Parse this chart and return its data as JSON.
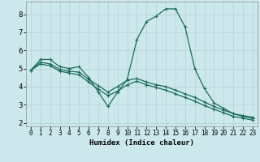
{
  "xlabel": "Humidex (Indice chaleur)",
  "bg_color": "#cce8ec",
  "line_color": "#1a6b5a",
  "grid_color": "#b8d8dc",
  "xlim": [
    -0.5,
    23.5
  ],
  "ylim": [
    1.8,
    8.7
  ],
  "xticks": [
    0,
    1,
    2,
    3,
    4,
    5,
    6,
    7,
    8,
    9,
    10,
    11,
    12,
    13,
    14,
    15,
    16,
    17,
    18,
    19,
    20,
    21,
    22,
    23
  ],
  "yticks": [
    2,
    3,
    4,
    5,
    6,
    7,
    8
  ],
  "curve1_x": [
    0,
    1,
    2,
    3,
    4,
    5,
    6,
    7,
    8,
    9,
    10,
    11,
    12,
    13,
    14,
    15,
    16,
    17,
    18,
    19,
    20,
    21,
    22,
    23
  ],
  "curve1_y": [
    4.9,
    5.5,
    5.5,
    5.1,
    5.0,
    5.1,
    4.5,
    3.7,
    2.9,
    3.7,
    4.4,
    6.6,
    7.6,
    7.9,
    8.3,
    8.3,
    7.3,
    5.0,
    3.9,
    3.1,
    2.8,
    2.5,
    2.4,
    2.3
  ],
  "curve2_x": [
    0,
    1,
    2,
    3,
    4,
    5,
    6,
    7,
    8,
    9,
    10,
    11,
    12,
    13,
    14,
    15,
    16,
    17,
    18,
    19,
    20,
    21,
    22,
    23
  ],
  "curve2_y": [
    4.9,
    5.35,
    5.25,
    4.95,
    4.85,
    4.8,
    4.4,
    4.05,
    3.7,
    4.0,
    4.35,
    4.45,
    4.25,
    4.1,
    4.0,
    3.8,
    3.6,
    3.4,
    3.15,
    2.9,
    2.7,
    2.5,
    2.35,
    2.25
  ],
  "curve3_x": [
    0,
    1,
    2,
    3,
    4,
    5,
    6,
    7,
    8,
    9,
    10,
    11,
    12,
    13,
    14,
    15,
    16,
    17,
    18,
    19,
    20,
    21,
    22,
    23
  ],
  "curve3_y": [
    4.9,
    5.25,
    5.15,
    4.85,
    4.75,
    4.65,
    4.25,
    3.85,
    3.5,
    3.75,
    4.1,
    4.3,
    4.1,
    3.95,
    3.8,
    3.6,
    3.4,
    3.2,
    2.95,
    2.75,
    2.55,
    2.35,
    2.25,
    2.15
  ]
}
